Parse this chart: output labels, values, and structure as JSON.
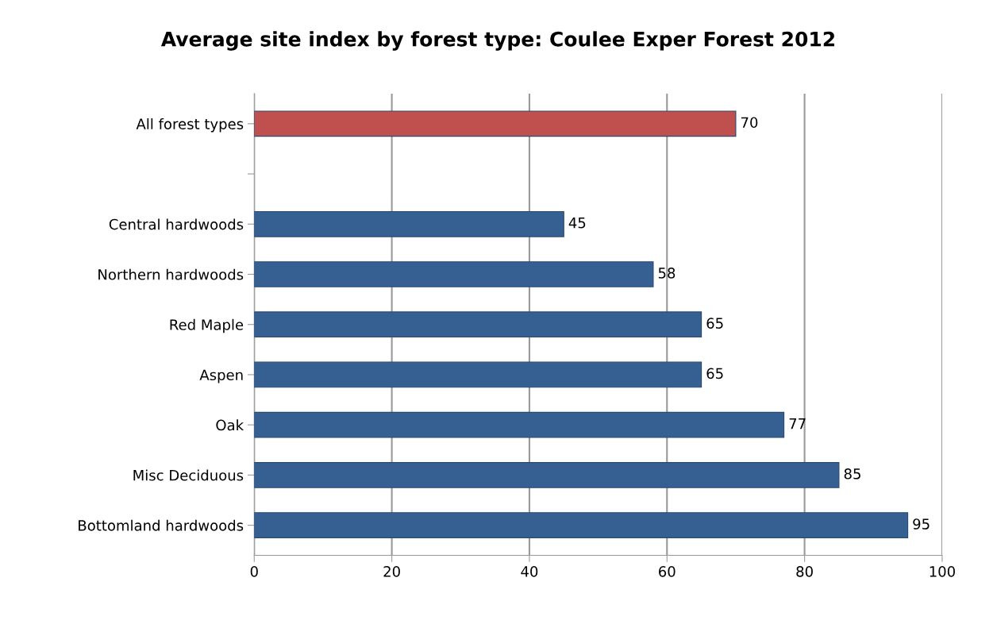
{
  "chart_data": {
    "type": "bar",
    "orientation": "horizontal",
    "title": "Average site index by forest type: Coulee Exper Forest 2012",
    "categories": [
      "All forest types",
      null,
      "Central hardwoods",
      "Northern hardwoods",
      "Red Maple",
      "Aspen",
      "Oak",
      "Misc Deciduous",
      "Bottomland hardwoods"
    ],
    "values": [
      70,
      null,
      45,
      58,
      65,
      65,
      77,
      85,
      95
    ],
    "colors": [
      "#c0504d",
      null,
      "#376092",
      "#376092",
      "#376092",
      "#376092",
      "#376092",
      "#376092",
      "#376092"
    ],
    "xlim": [
      0,
      100
    ],
    "xticks": [
      0,
      20,
      40,
      60,
      80,
      100
    ],
    "grid": "x",
    "data_labels": true
  }
}
